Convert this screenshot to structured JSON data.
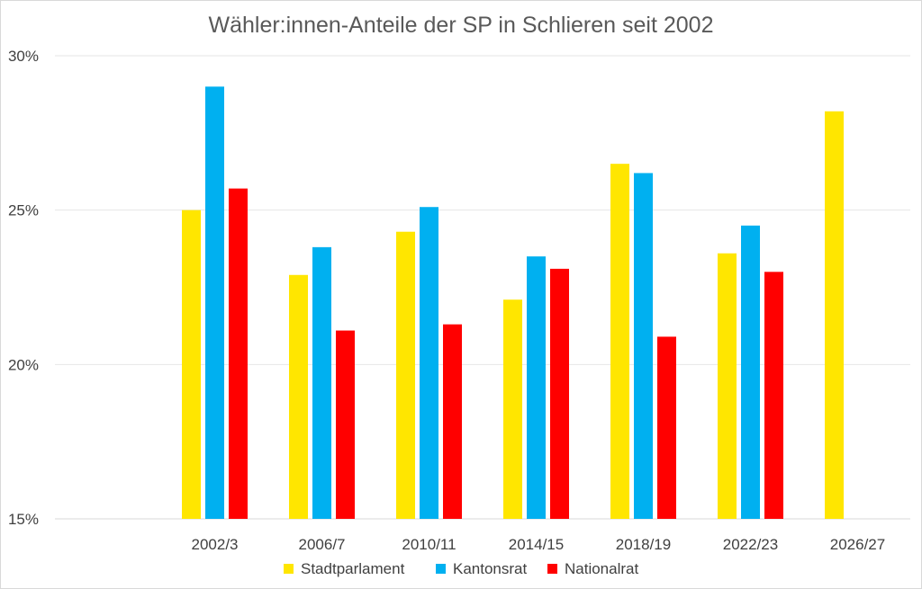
{
  "chart_data": {
    "type": "bar",
    "title": "Wähler:innen-Anteile der SP in Schlieren seit 2002",
    "xlabel": "",
    "ylabel": "",
    "ylim": [
      15,
      30
    ],
    "y_ticks": [
      15,
      20,
      25,
      30
    ],
    "y_tick_labels": [
      "15%",
      "20%",
      "25%",
      "30%"
    ],
    "grid": true,
    "legend_position": "bottom",
    "categories": [
      "2002/3",
      "2006/7",
      "2010/11",
      "2014/15",
      "2018/19",
      "2022/23",
      "2026/27"
    ],
    "series": [
      {
        "name": "Stadtparlament",
        "color": "#FFE600",
        "values": [
          25.0,
          22.9,
          24.3,
          22.1,
          26.5,
          23.6,
          28.2
        ]
      },
      {
        "name": "Kantonsrat",
        "color": "#00B0F0",
        "values": [
          29.0,
          23.8,
          25.1,
          23.5,
          26.2,
          24.5,
          null
        ]
      },
      {
        "name": "Nationalrat",
        "color": "#FF0000",
        "values": [
          25.7,
          21.1,
          21.3,
          23.1,
          20.9,
          23.0,
          null
        ]
      }
    ]
  }
}
